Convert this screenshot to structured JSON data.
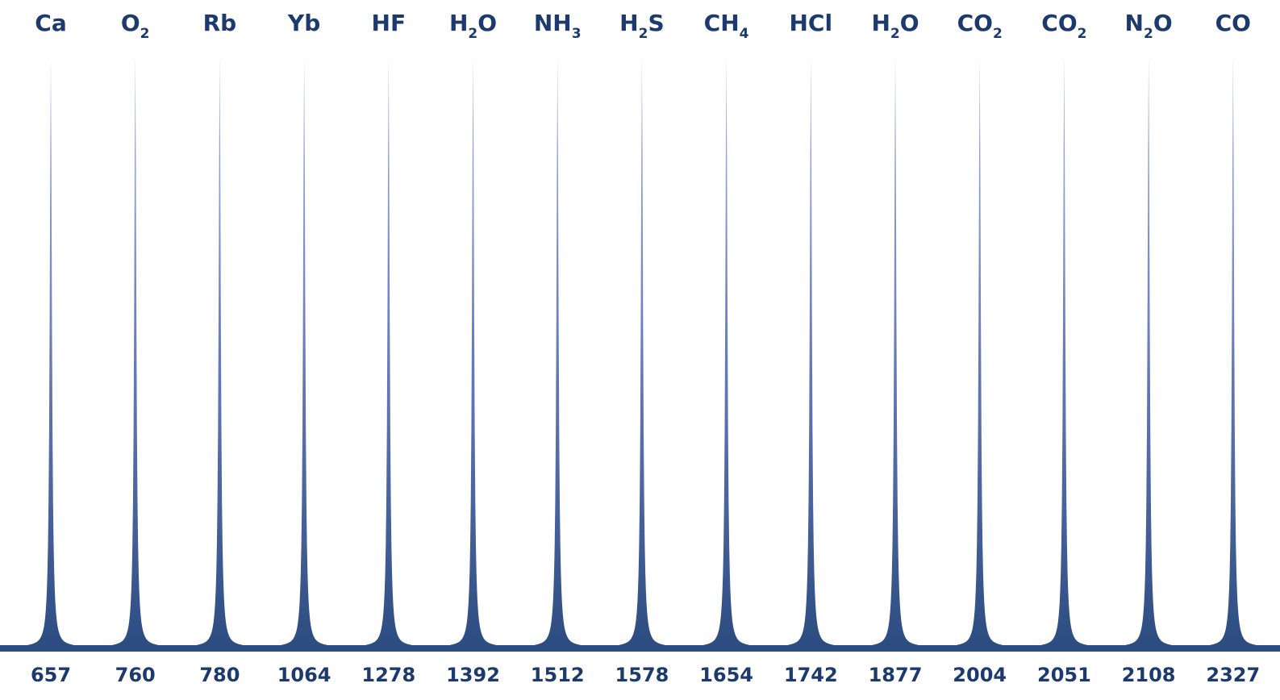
{
  "chart_data": {
    "type": "line",
    "title": "",
    "xlabel": "",
    "ylabel": "",
    "grid": false,
    "legend": "none",
    "colors": {
      "line_top": "#a9b3e0",
      "line_bottom": "#2b4c80",
      "baseline": "#2b4c80",
      "text": "#1c3a6e"
    },
    "peaks": [
      {
        "species": "Ca",
        "species_parts": [
          {
            "t": "Ca",
            "sub": false
          }
        ],
        "wavelength": 657
      },
      {
        "species": "O2",
        "species_parts": [
          {
            "t": "O",
            "sub": false
          },
          {
            "t": "2",
            "sub": true
          }
        ],
        "wavelength": 760
      },
      {
        "species": "Rb",
        "species_parts": [
          {
            "t": "Rb",
            "sub": false
          }
        ],
        "wavelength": 780
      },
      {
        "species": "Yb",
        "species_parts": [
          {
            "t": "Yb",
            "sub": false
          }
        ],
        "wavelength": 1064
      },
      {
        "species": "HF",
        "species_parts": [
          {
            "t": "HF",
            "sub": false
          }
        ],
        "wavelength": 1278
      },
      {
        "species": "H2O",
        "species_parts": [
          {
            "t": "H",
            "sub": false
          },
          {
            "t": "2",
            "sub": true
          },
          {
            "t": "O",
            "sub": false
          }
        ],
        "wavelength": 1392
      },
      {
        "species": "NH3",
        "species_parts": [
          {
            "t": "NH",
            "sub": false
          },
          {
            "t": "3",
            "sub": true
          }
        ],
        "wavelength": 1512
      },
      {
        "species": "H2S",
        "species_parts": [
          {
            "t": "H",
            "sub": false
          },
          {
            "t": "2",
            "sub": true
          },
          {
            "t": "S",
            "sub": false
          }
        ],
        "wavelength": 1578
      },
      {
        "species": "CH4",
        "species_parts": [
          {
            "t": "CH",
            "sub": false
          },
          {
            "t": "4",
            "sub": true
          }
        ],
        "wavelength": 1654
      },
      {
        "species": "HCl",
        "species_parts": [
          {
            "t": "HCl",
            "sub": false
          }
        ],
        "wavelength": 1742
      },
      {
        "species": "H2O",
        "species_parts": [
          {
            "t": "H",
            "sub": false
          },
          {
            "t": "2",
            "sub": true
          },
          {
            "t": "O",
            "sub": false
          }
        ],
        "wavelength": 1877
      },
      {
        "species": "CO2",
        "species_parts": [
          {
            "t": "CO",
            "sub": false
          },
          {
            "t": "2",
            "sub": true
          }
        ],
        "wavelength": 2004
      },
      {
        "species": "CO2",
        "species_parts": [
          {
            "t": "CO",
            "sub": false
          },
          {
            "t": "2",
            "sub": true
          }
        ],
        "wavelength": 2051
      },
      {
        "species": "N2O",
        "species_parts": [
          {
            "t": "N",
            "sub": false
          },
          {
            "t": "2",
            "sub": true
          },
          {
            "t": "O",
            "sub": false
          }
        ],
        "wavelength": 2108
      },
      {
        "species": "CO",
        "species_parts": [
          {
            "t": "CO",
            "sub": false
          }
        ],
        "wavelength": 2327
      }
    ]
  }
}
